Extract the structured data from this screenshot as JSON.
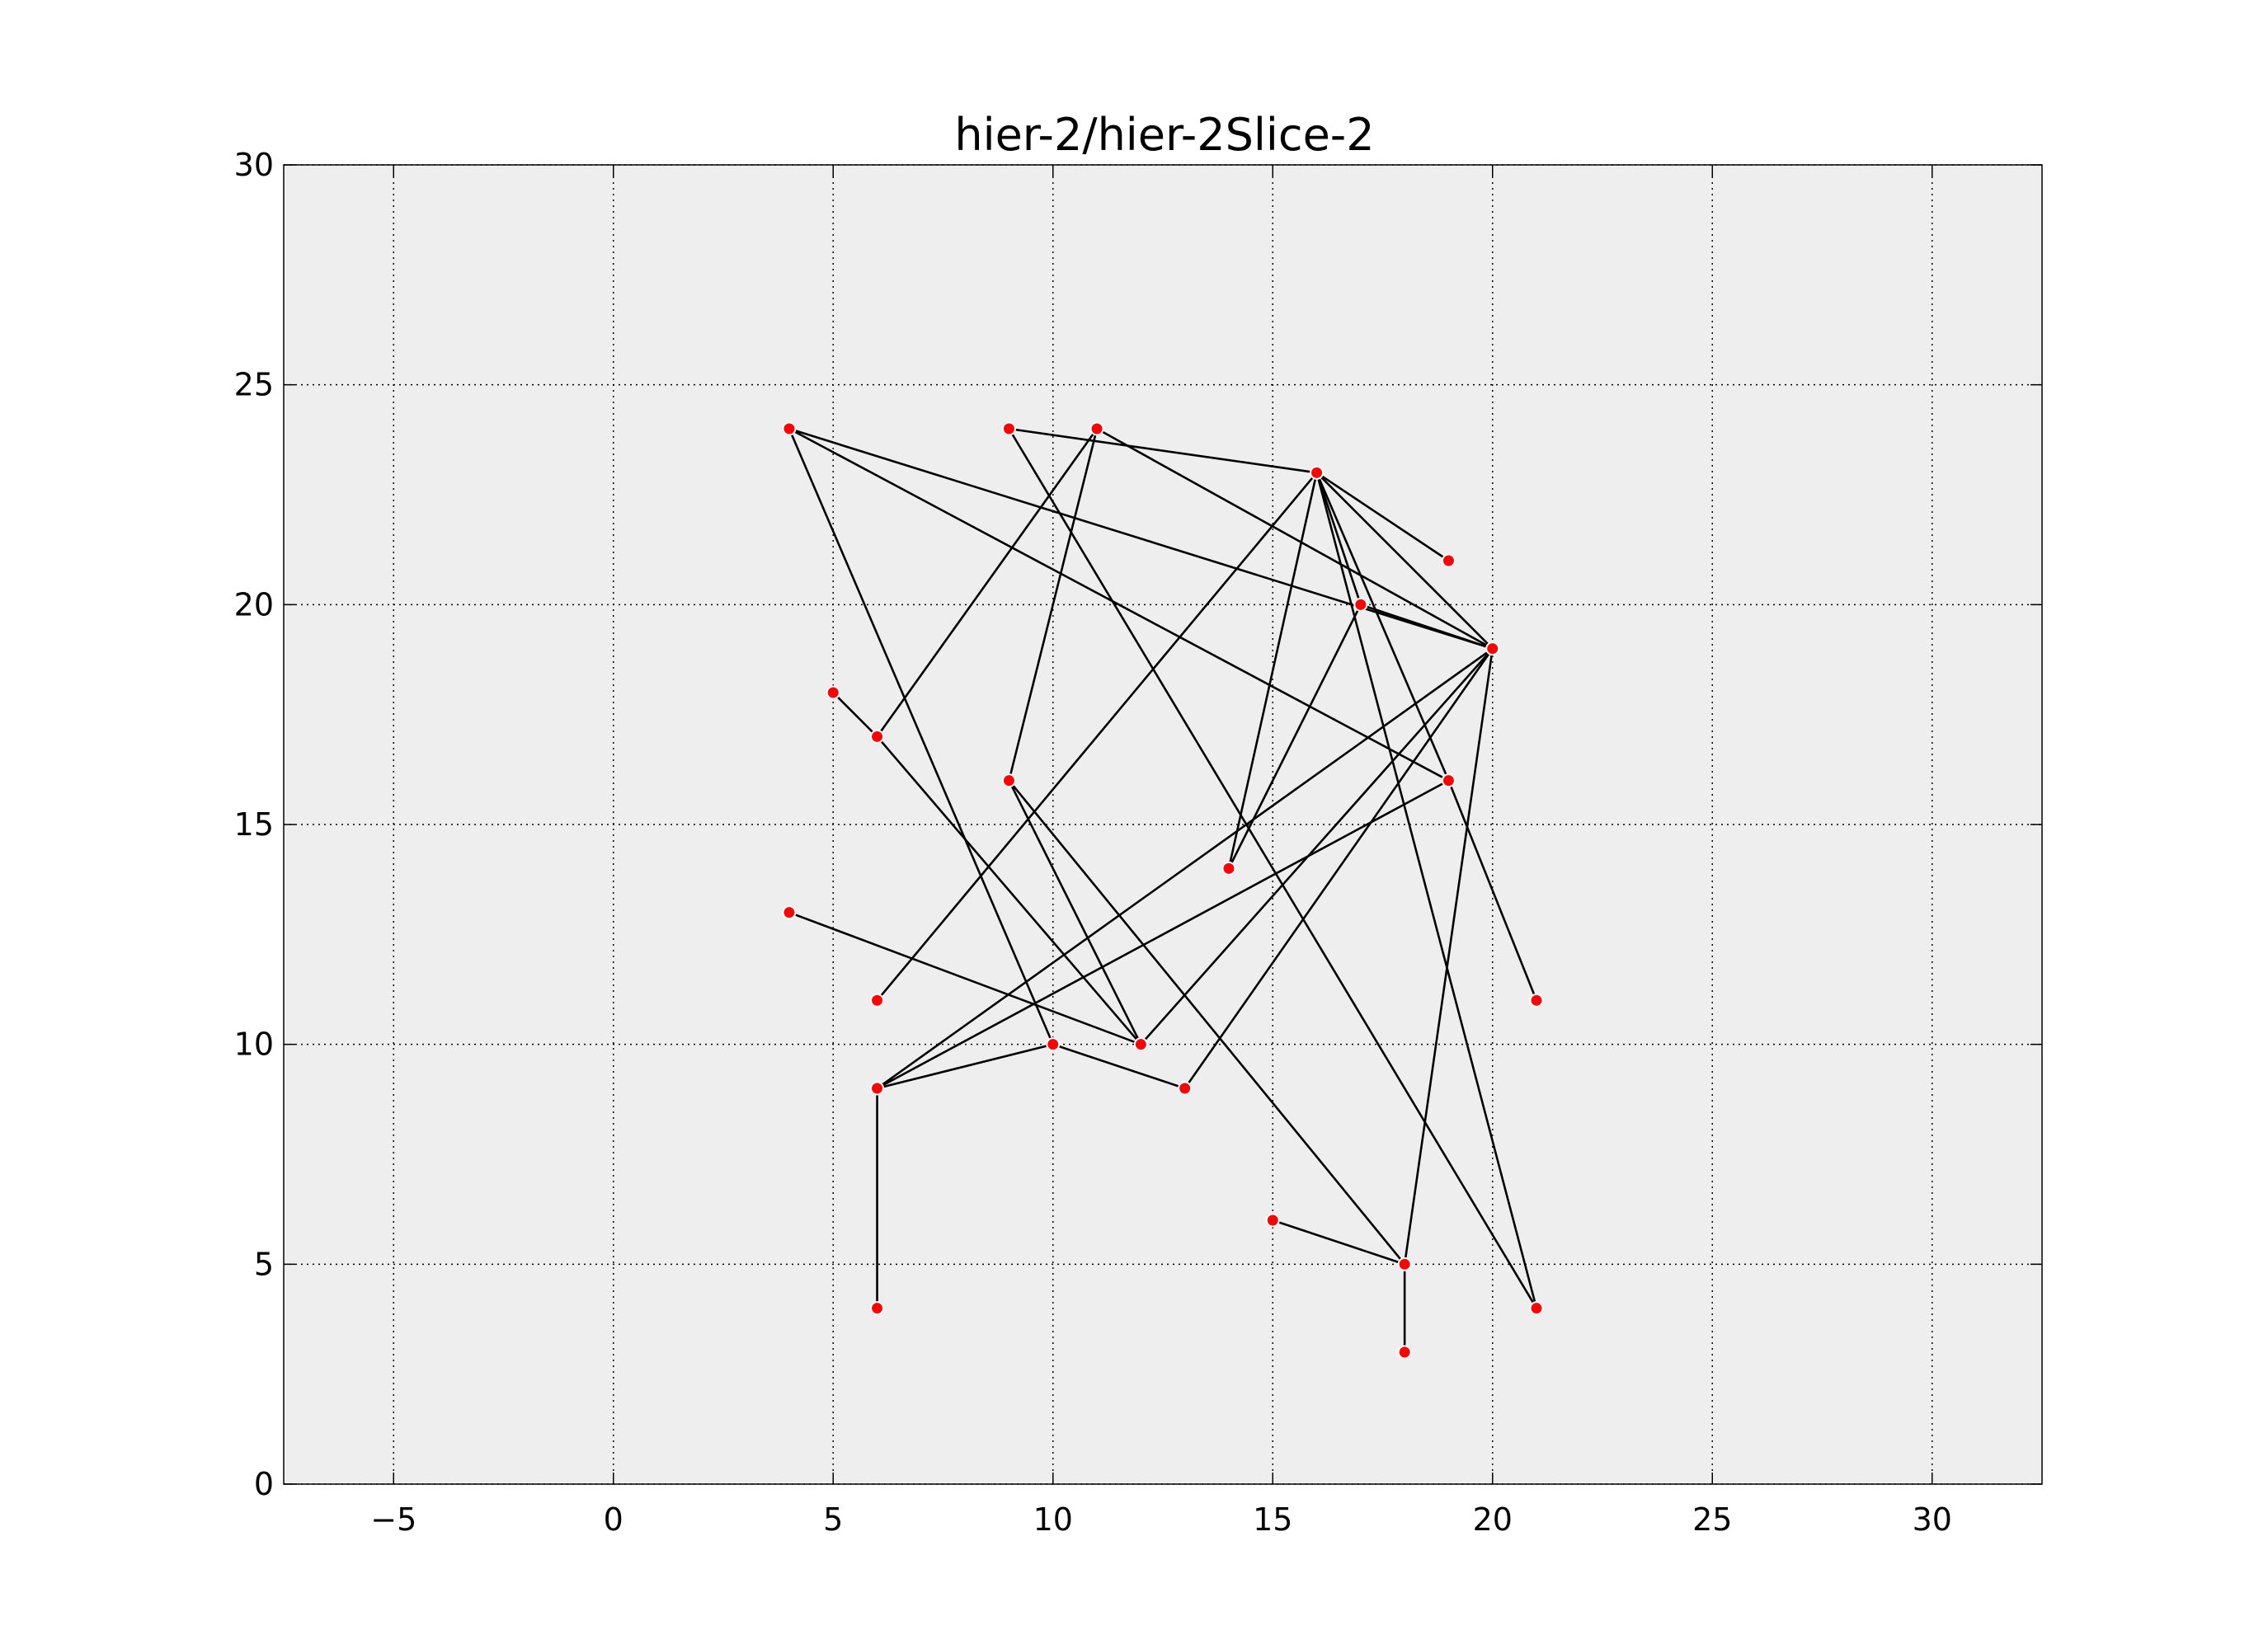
{
  "chart_data": {
    "type": "graph",
    "title": "hier-2/hier-2Slice-2",
    "xlabel": "",
    "ylabel": "",
    "xlim": [
      -7.5,
      32.5
    ],
    "ylim": [
      0,
      30
    ],
    "xticks": [
      -5,
      0,
      5,
      10,
      15,
      20,
      25,
      30
    ],
    "xtick_labels": [
      "−5",
      "0",
      "5",
      "10",
      "15",
      "20",
      "25",
      "30"
    ],
    "yticks": [
      0,
      5,
      10,
      15,
      20,
      25,
      30
    ],
    "ytick_labels": [
      "0",
      "5",
      "10",
      "15",
      "20",
      "25",
      "30"
    ],
    "grid": true,
    "colors": {
      "plot_background": "#eeeeee",
      "node_fill": "#ff0000",
      "node_stroke": "#ffffff",
      "edge": "#000000",
      "grid": "#000000"
    },
    "nodes": [
      {
        "x": 4,
        "y": 24
      },
      {
        "x": 9,
        "y": 24
      },
      {
        "x": 11,
        "y": 24
      },
      {
        "x": 16,
        "y": 23
      },
      {
        "x": 19,
        "y": 21
      },
      {
        "x": 17,
        "y": 20
      },
      {
        "x": 20,
        "y": 19
      },
      {
        "x": 5,
        "y": 18
      },
      {
        "x": 6,
        "y": 17
      },
      {
        "x": 9,
        "y": 16
      },
      {
        "x": 19,
        "y": 16
      },
      {
        "x": 14,
        "y": 14
      },
      {
        "x": 4,
        "y": 13
      },
      {
        "x": 6,
        "y": 11
      },
      {
        "x": 21,
        "y": 11
      },
      {
        "x": 10,
        "y": 10
      },
      {
        "x": 12,
        "y": 10
      },
      {
        "x": 6,
        "y": 9
      },
      {
        "x": 13,
        "y": 9
      },
      {
        "x": 15,
        "y": 6
      },
      {
        "x": 18,
        "y": 5
      },
      {
        "x": 6,
        "y": 4
      },
      {
        "x": 21,
        "y": 4
      },
      {
        "x": 18,
        "y": 3
      }
    ],
    "edges": [
      [
        0,
        6
      ],
      [
        0,
        10
      ],
      [
        0,
        15
      ],
      [
        1,
        3
      ],
      [
        1,
        22
      ],
      [
        2,
        8
      ],
      [
        2,
        9
      ],
      [
        2,
        6
      ],
      [
        3,
        4
      ],
      [
        3,
        5
      ],
      [
        3,
        6
      ],
      [
        3,
        10
      ],
      [
        3,
        11
      ],
      [
        3,
        13
      ],
      [
        3,
        22
      ],
      [
        5,
        6
      ],
      [
        5,
        11
      ],
      [
        7,
        8
      ],
      [
        8,
        16
      ],
      [
        9,
        16
      ],
      [
        9,
        20
      ],
      [
        10,
        14
      ],
      [
        10,
        17
      ],
      [
        12,
        16
      ],
      [
        17,
        6
      ],
      [
        17,
        15
      ],
      [
        17,
        21
      ],
      [
        15,
        18
      ],
      [
        16,
        6
      ],
      [
        18,
        6
      ],
      [
        20,
        6
      ],
      [
        19,
        20
      ],
      [
        20,
        23
      ]
    ]
  }
}
